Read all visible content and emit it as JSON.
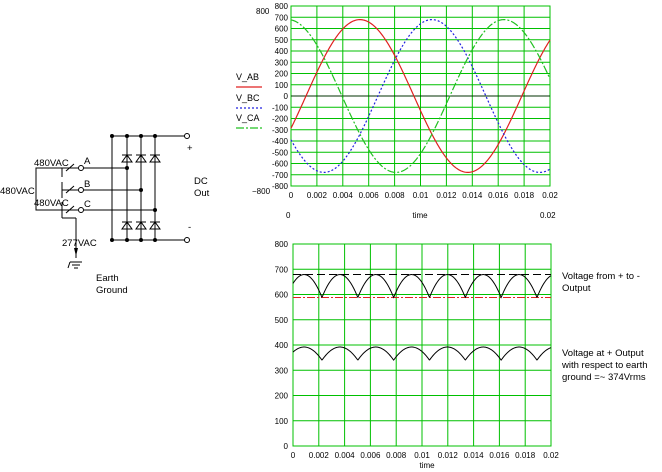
{
  "circuit": {
    "line_voltage_left": "480VAC",
    "line_voltage_ab": "480VAC",
    "line_voltage_bc": "480VAC",
    "phase_a": "A",
    "phase_b": "B",
    "phase_c": "C",
    "phase_voltage": "277VAC",
    "earth_label": [
      "Earth",
      "Ground"
    ],
    "dc_label": [
      "DC",
      "Out"
    ],
    "plus": "+",
    "minus": "-"
  },
  "top_chart": {
    "legend": [
      "V_AB",
      "V_BC",
      "V_CA"
    ],
    "series_colors": [
      "#e02020",
      "#2020e0",
      "#20c020"
    ],
    "grid_color": "#00c000",
    "x_ticks": [
      "0",
      "0.002",
      "0.004",
      "0.006",
      "0.008",
      "0.01",
      "0.012",
      "0.014",
      "0.016",
      "0.018",
      "0.02"
    ],
    "y_ticks": [
      "800",
      "700",
      "600",
      "500",
      "400",
      "300",
      "200",
      "100",
      "0",
      "-100",
      "-200",
      "-300",
      "-400",
      "-500",
      "-600",
      "-700",
      "-800"
    ],
    "y_left_top": "800",
    "y_left_bottom": "−800",
    "x_left_zero": "0",
    "x_right_end": "0.02",
    "xlabel": "time"
  },
  "bottom_chart": {
    "x_ticks": [
      "0",
      "0.002",
      "0.004",
      "0.006",
      "0.008",
      "0.01",
      "0.012",
      "0.014",
      "0.016",
      "0.018",
      "0.02"
    ],
    "y_ticks": [
      "800",
      "700",
      "600",
      "500",
      "400",
      "300",
      "200",
      "100",
      "0"
    ],
    "xlabel": "time",
    "annotation_upper": [
      "Voltage from + to -",
      "Output"
    ],
    "annotation_lower": [
      "Voltage at + Output",
      "with respect to earth",
      "ground =~ 374Vrms"
    ]
  },
  "chart_data": [
    {
      "type": "line",
      "xlabel": "time",
      "ylabel": "",
      "xlim": [
        0,
        0.02
      ],
      "ylim": [
        -800,
        800
      ],
      "grid": true,
      "legend_placement": "left",
      "frequency_hz": 60,
      "amplitude": 679,
      "series": [
        {
          "name": "V_AB",
          "phase_deg": 0,
          "style": "solid"
        },
        {
          "name": "V_BC",
          "phase_deg": -120,
          "style": "dotted"
        },
        {
          "name": "V_CA",
          "phase_deg": 120,
          "style": "dash-dot"
        }
      ]
    },
    {
      "type": "line",
      "xlabel": "time",
      "ylabel": "",
      "xlim": [
        0,
        0.02
      ],
      "ylim": [
        0,
        800
      ],
      "grid": true,
      "frequency_hz": 60,
      "series": [
        {
          "name": "",
          "description": "full-wave 6-pulse DC output (+ to -)",
          "peak": 679,
          "valley": 588
        },
        {
          "name": "",
          "description": "+ output w.r.t. earth ground",
          "peak": 392,
          "valley": 340
        },
        {
          "name": "",
          "reference_level": 679,
          "style": "dashed"
        },
        {
          "name": "",
          "reference_level": 588,
          "style": "dash-dot"
        }
      ]
    }
  ]
}
